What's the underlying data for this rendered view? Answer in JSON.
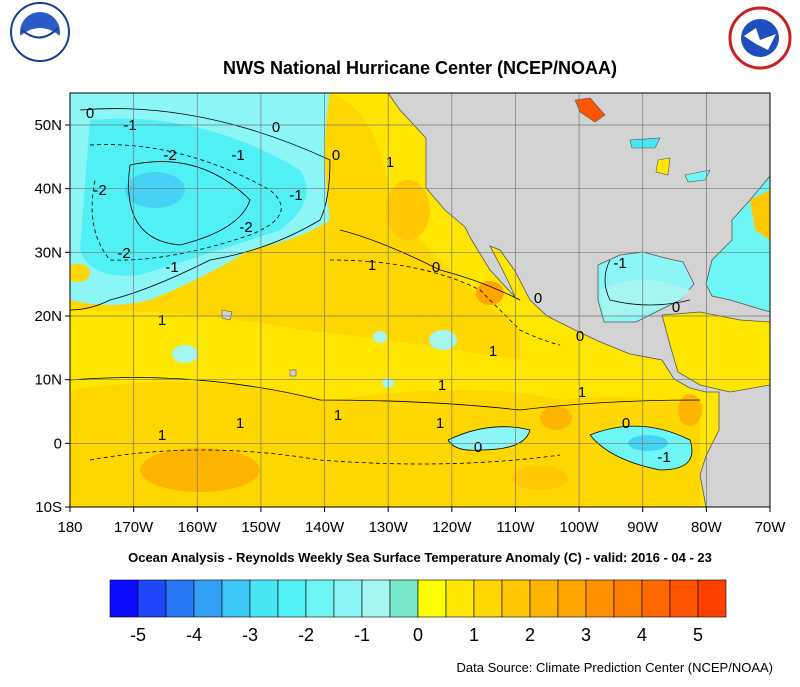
{
  "title": "NWS National Hurricane Center (NCEP/NOAA)",
  "lon_labels": [
    "180",
    "170W",
    "160W",
    "150W",
    "140W",
    "130W",
    "120W",
    "110W",
    "100W",
    "90W",
    "80W",
    "70W"
  ],
  "lat_labels": [
    "50N",
    "40N",
    "30N",
    "20N",
    "10N",
    "0",
    "10S"
  ],
  "caption": "Ocean Analysis - Reynolds Weekly Sea Surface Temperature Anomaly (C) - valid: 2016 - 04 - 23",
  "colorbar": {
    "ticks": [
      -5,
      -4,
      -3,
      -2,
      -1,
      0,
      1,
      2,
      3,
      4,
      5
    ],
    "colors": [
      "#0a0aff",
      "#1e46fa",
      "#2878f5",
      "#32a0f5",
      "#3cc8f5",
      "#46e6f5",
      "#50f0f5",
      "#6ef5f5",
      "#8cf5f5",
      "#a5f5f0",
      "#78e6c8",
      "#ffff00",
      "#ffe600",
      "#ffd700",
      "#ffc800",
      "#ffb400",
      "#ffa500",
      "#ff9100",
      "#ff7d00",
      "#ff6900",
      "#ff5500",
      "#ff4100"
    ]
  },
  "contour_labels": [
    "0",
    "-1",
    "0",
    "-2",
    "-1",
    "0",
    "-2",
    "-1",
    "-2",
    "-2",
    "-1",
    "1",
    "1",
    "0",
    "1",
    "0",
    "1",
    "1",
    "1",
    "1",
    "1",
    "0",
    "1",
    "0",
    "-1",
    "0",
    "1",
    "-1",
    "0"
  ],
  "source": "Data Source: Climate Prediction Center (NCEP/NOAA)"
}
